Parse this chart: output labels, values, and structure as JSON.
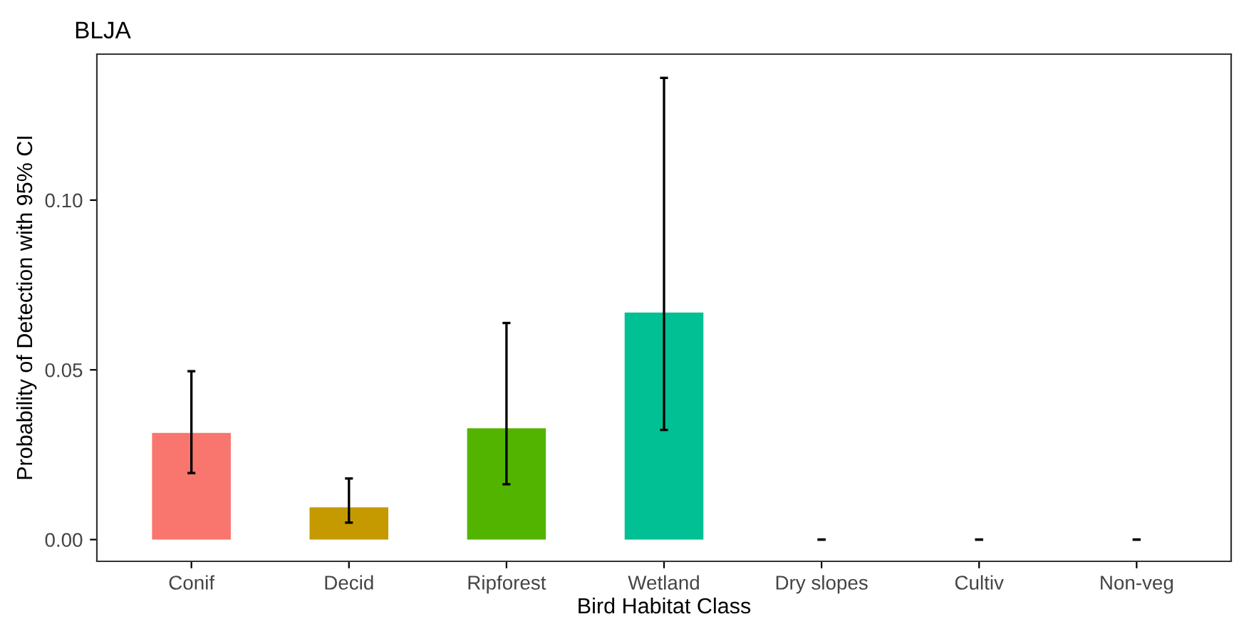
{
  "chart_data": {
    "type": "bar",
    "title": "BLJA",
    "xlabel": "Bird Habitat Class",
    "ylabel": "Probability of Detection with 95% CI",
    "categories": [
      "Conif",
      "Decid",
      "Ripforest",
      "Wetland",
      "Dry slopes",
      "Cultiv",
      "Non-veg"
    ],
    "values": [
      0.0314,
      0.0095,
      0.0328,
      0.0669,
      0,
      0,
      0
    ],
    "errors": [
      [
        0.0196,
        0.0496
      ],
      [
        0.005,
        0.018
      ],
      [
        0.0163,
        0.0638
      ],
      [
        0.0323,
        0.136
      ],
      [
        0,
        0
      ],
      [
        0,
        0
      ],
      [
        0,
        0
      ]
    ],
    "colors": [
      "#f8766d",
      "#c49a00",
      "#53b400",
      "#00c094",
      "#00b6eb",
      "#a58aff",
      "#fb61d7"
    ],
    "ylim": [
      -0.0064,
      0.143
    ],
    "yticks": [
      {
        "value": 0,
        "label": "0.00"
      },
      {
        "value": 0.05,
        "label": "0.05"
      },
      {
        "value": 0.1,
        "label": "0.10"
      }
    ],
    "grid": false,
    "legend": false
  }
}
